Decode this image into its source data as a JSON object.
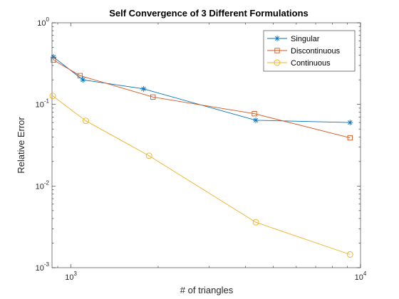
{
  "chart_data": {
    "type": "line",
    "title": "Self Convergence of 3 Different Formulations",
    "xlabel": "# of triangles",
    "ylabel": "Relative Error",
    "xscale": "log",
    "yscale": "log",
    "xlim": [
      860,
      10000
    ],
    "ylim": [
      0.001,
      1
    ],
    "xticks": [
      {
        "value": 1000,
        "base": "10",
        "exp": "3"
      },
      {
        "value": 10000,
        "base": "10",
        "exp": "4"
      }
    ],
    "yticks": [
      {
        "value": 1,
        "base": "10",
        "exp": "0"
      },
      {
        "value": 0.1,
        "base": "10",
        "exp": "-1"
      },
      {
        "value": 0.01,
        "base": "10",
        "exp": "-2"
      },
      {
        "value": 0.001,
        "base": "10",
        "exp": "-3"
      }
    ],
    "grid": false,
    "box": true,
    "legend_position": "top-right",
    "series": [
      {
        "name": "Singular",
        "color": "#0072bd",
        "marker": "asterisk",
        "points": [
          {
            "x": 870,
            "y": 0.38
          },
          {
            "x": 1100,
            "y": 0.2
          },
          {
            "x": 1780,
            "y": 0.155
          },
          {
            "x": 4350,
            "y": 0.064
          },
          {
            "x": 9200,
            "y": 0.06
          }
        ]
      },
      {
        "name": "Discontinuous",
        "color": "#d95319",
        "marker": "square",
        "points": [
          {
            "x": 870,
            "y": 0.35
          },
          {
            "x": 1075,
            "y": 0.225
          },
          {
            "x": 1920,
            "y": 0.123
          },
          {
            "x": 4300,
            "y": 0.077
          },
          {
            "x": 9200,
            "y": 0.039
          }
        ]
      },
      {
        "name": "Continuous",
        "color": "#edb120",
        "marker": "circle",
        "points": [
          {
            "x": 865,
            "y": 0.127
          },
          {
            "x": 1125,
            "y": 0.063
          },
          {
            "x": 1860,
            "y": 0.0235
          },
          {
            "x": 4350,
            "y": 0.0036
          },
          {
            "x": 9200,
            "y": 0.00145
          }
        ]
      }
    ]
  }
}
